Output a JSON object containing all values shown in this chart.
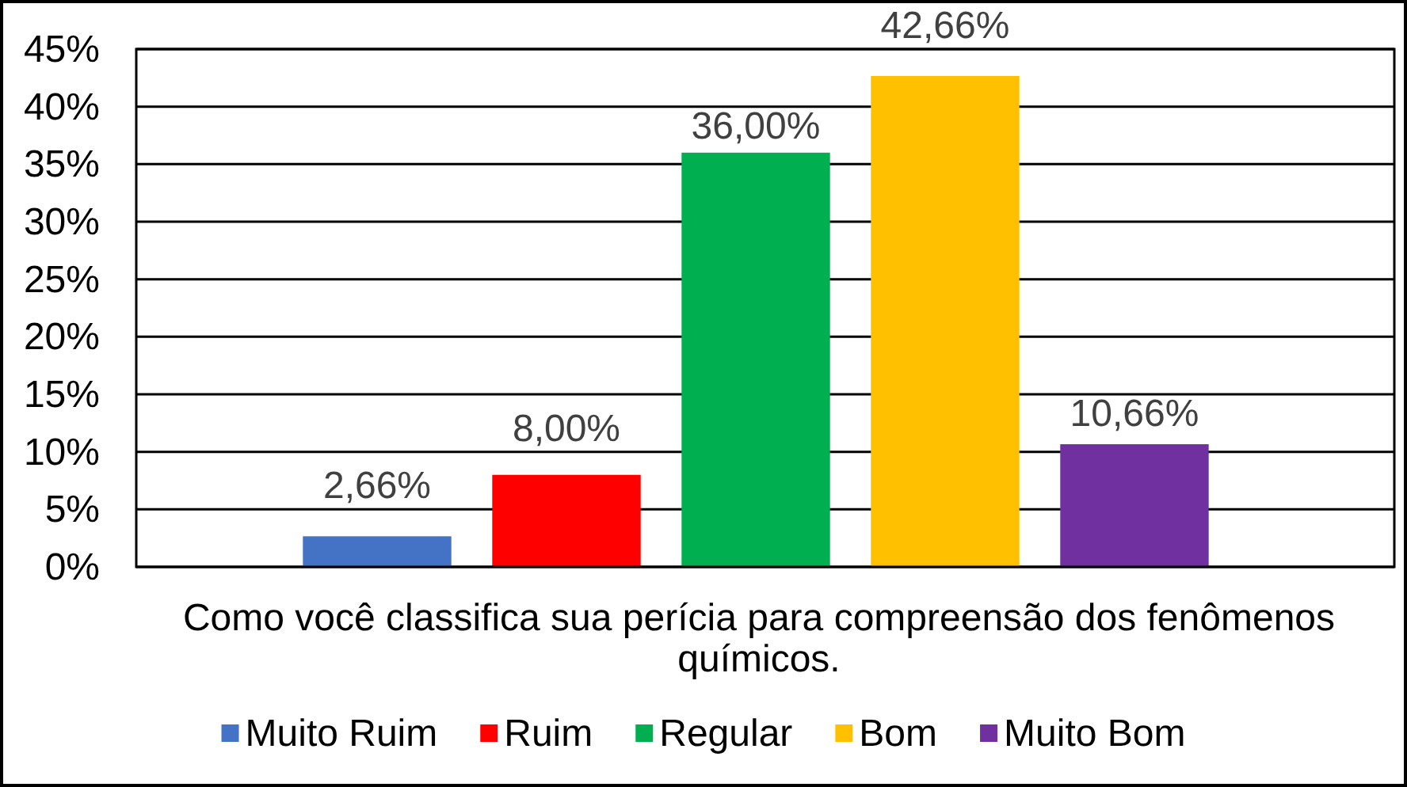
{
  "chart_data": {
    "type": "bar",
    "xlabel": "Como você classifica sua perícia para compreensão dos fenômenos químicos.",
    "categories": [
      null
    ],
    "series": [
      {
        "name": "Muito Ruim",
        "color": "#4472c4",
        "values": [
          2.66
        ],
        "value_labels": [
          "2,66%"
        ]
      },
      {
        "name": "Ruim",
        "color": "#ff0000",
        "values": [
          8.0
        ],
        "value_labels": [
          "8,00%"
        ]
      },
      {
        "name": "Regular",
        "color": "#00b050",
        "values": [
          36.0
        ],
        "value_labels": [
          "36,00%"
        ]
      },
      {
        "name": "Bom",
        "color": "#ffc000",
        "values": [
          42.66
        ],
        "value_labels": [
          "42,66%"
        ]
      },
      {
        "name": "Muito Bom",
        "color": "#7030a0",
        "values": [
          10.66
        ],
        "value_labels": [
          "10,66%"
        ]
      }
    ],
    "ylim": [
      0,
      45
    ],
    "yticks": [
      {
        "value": 0,
        "label": "0%"
      },
      {
        "value": 5,
        "label": "5%"
      },
      {
        "value": 10,
        "label": "10%"
      },
      {
        "value": 15,
        "label": "15%"
      },
      {
        "value": 20,
        "label": "20%"
      },
      {
        "value": 25,
        "label": "25%"
      },
      {
        "value": 30,
        "label": "30%"
      },
      {
        "value": 35,
        "label": "35%"
      },
      {
        "value": 40,
        "label": "40%"
      },
      {
        "value": 45,
        "label": "45%"
      }
    ],
    "grid": "y",
    "legend": "bottom"
  }
}
